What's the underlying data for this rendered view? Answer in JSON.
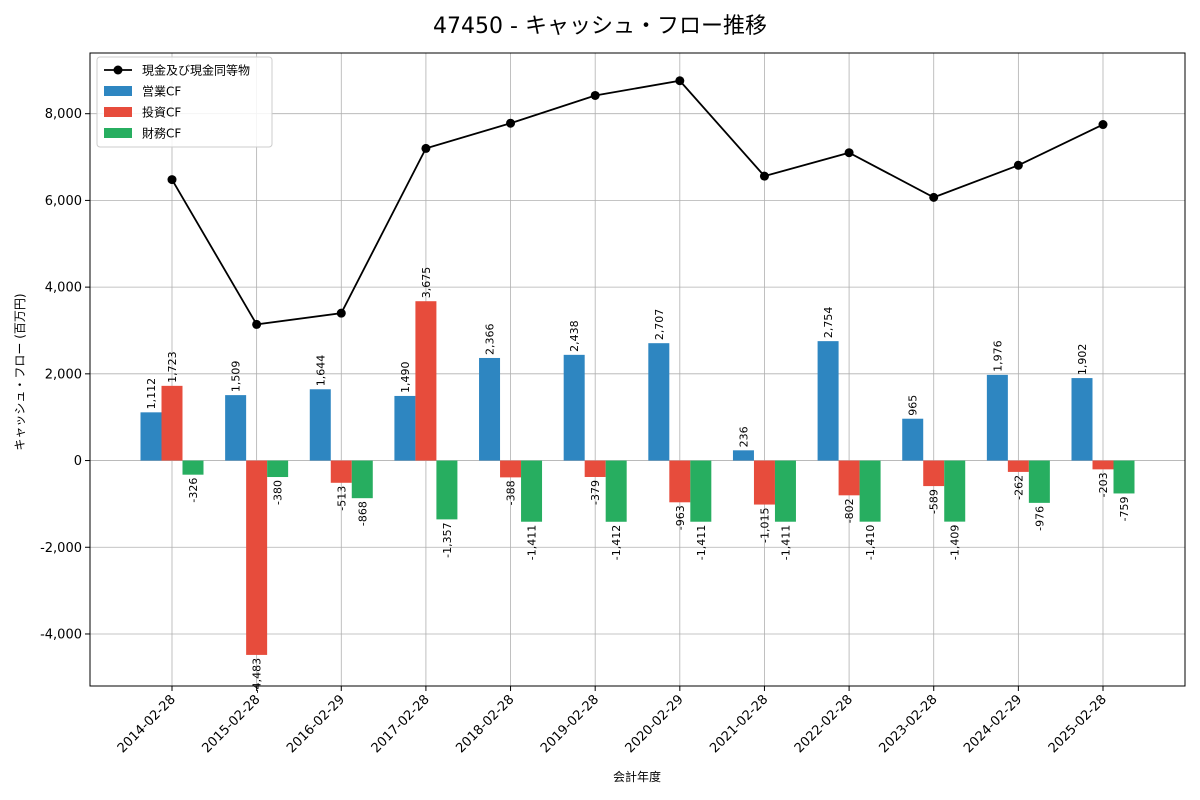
{
  "chart_data": {
    "type": "bar",
    "title": "47450 - キャッシュ・フロー推移",
    "xlabel": "会計年度",
    "ylabel": "キャッシュ・フロー (百万円)",
    "ylim": [
      -5200,
      9400
    ],
    "yticks": [
      -4000,
      -2000,
      0,
      2000,
      4000,
      6000,
      8000
    ],
    "ytick_labels": [
      "-4,000",
      "-2,000",
      "0",
      "2,000",
      "4,000",
      "6,000",
      "8,000"
    ],
    "grid": true,
    "legend_position": "top-left",
    "categories": [
      "2014-02-28",
      "2015-02-28",
      "2016-02-29",
      "2017-02-28",
      "2018-02-28",
      "2019-02-28",
      "2020-02-29",
      "2021-02-28",
      "2022-02-28",
      "2023-02-28",
      "2024-02-29",
      "2025-02-28"
    ],
    "series": [
      {
        "name": "営業CF",
        "kind": "bar",
        "color": "#2e86c1",
        "values": [
          1112,
          1509,
          1644,
          1490,
          2366,
          2438,
          2707,
          236,
          2754,
          965,
          1976,
          1902
        ],
        "labels": [
          "1,112",
          "1,509",
          "1,644",
          "1,490",
          "2,366",
          "2,438",
          "2,707",
          "236",
          "2,754",
          "965",
          "1,976",
          "1,902"
        ]
      },
      {
        "name": "投資CF",
        "kind": "bar",
        "color": "#e74c3c",
        "values": [
          1723,
          -4483,
          -513,
          3675,
          -388,
          -379,
          -963,
          -1015,
          -802,
          -589,
          -262,
          -203
        ],
        "labels": [
          "1,723",
          "-4,483",
          "-513",
          "3,675",
          "-388",
          "-379",
          "-963",
          "-1,015",
          "-802",
          "-589",
          "-262",
          "-203"
        ]
      },
      {
        "name": "財務CF",
        "kind": "bar",
        "color": "#27ae60",
        "values": [
          -326,
          -380,
          -868,
          -1357,
          -1411,
          -1412,
          -1411,
          -1411,
          -1410,
          -1409,
          -976,
          -759
        ],
        "labels": [
          "-326",
          "-380",
          "-868",
          "-1,357",
          "-1,411",
          "-1,412",
          "-1,411",
          "-1,411",
          "-1,410",
          "-1,409",
          "-976",
          "-759"
        ]
      },
      {
        "name": "現金及び現金同等物",
        "kind": "line",
        "color": "#000000",
        "values": [
          6480,
          3140,
          3400,
          7200,
          7780,
          8420,
          8760,
          6560,
          7100,
          6070,
          6810,
          7750
        ]
      }
    ]
  }
}
